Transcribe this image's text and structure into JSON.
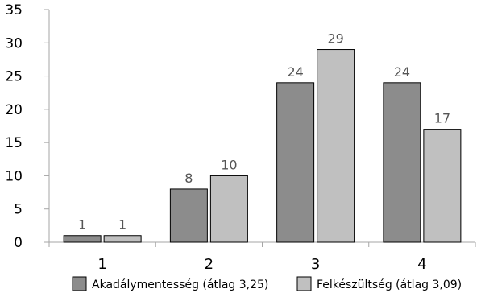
{
  "chart_data": {
    "type": "bar",
    "title": "",
    "xlabel": "",
    "ylabel": "",
    "categories": [
      "1",
      "2",
      "3",
      "4"
    ],
    "series": [
      {
        "name": "Akadálymentesség (átlag 3,25)",
        "values": [
          1,
          8,
          24,
          24
        ],
        "color": "#8c8c8c"
      },
      {
        "name": "Felkészültség (átlag 3,09)",
        "values": [
          1,
          10,
          29,
          17
        ],
        "color": "#c0c0c0"
      }
    ],
    "ylim": [
      0,
      35
    ],
    "yticks": [
      0,
      5,
      10,
      15,
      20,
      25,
      30,
      35
    ],
    "grid": false,
    "data_labels": true,
    "legend_position": "bottom"
  }
}
